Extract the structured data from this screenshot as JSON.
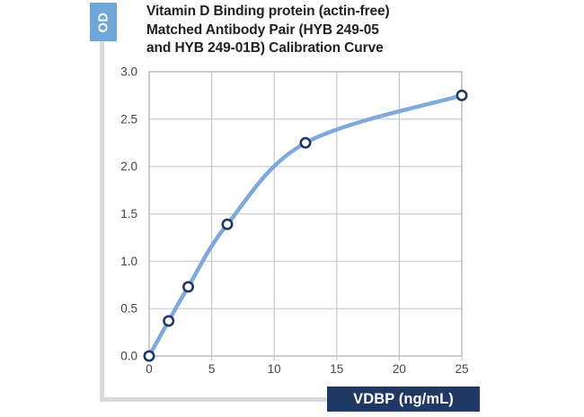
{
  "title": {
    "lines": [
      "Vitamin D Binding protein (actin-free)",
      "Matched Antibody Pair (HYB 249-05",
      "and HYB 249-01B) Calibration Curve"
    ]
  },
  "y_axis_label": "OD",
  "x_axis_label": "VDBP (ng/mL)",
  "colors": {
    "y_label_box": "#6fa7d9",
    "x_label_box": "#1f3864",
    "curve": "#7ea9da",
    "marker_stroke": "#1f3864",
    "marker_fill": "#ffffff",
    "gridline": "#c9c9c9",
    "plot_border": "#bfbfbf",
    "tick_text": "#454545",
    "axis_decor": "#d9d9d9",
    "title_text": "#221f20"
  },
  "chart_data": {
    "type": "line",
    "title": "Vitamin D Binding protein (actin-free) Matched Antibody Pair (HYB 249-05 and HYB 249-01B) Calibration Curve",
    "xlabel": "VDBP (ng/mL)",
    "ylabel": "OD",
    "x": [
      0,
      1.56,
      3.125,
      6.25,
      12.5,
      25
    ],
    "y": [
      0,
      0.37,
      0.73,
      1.39,
      2.25,
      2.75
    ],
    "xlim": [
      0,
      25
    ],
    "ylim": [
      0,
      3.0
    ],
    "x_tick_values": [
      0,
      5,
      10,
      15,
      20,
      25
    ],
    "x_ticks": [
      "0",
      "5",
      "10",
      "15",
      "20",
      "25"
    ],
    "y_tick_values": [
      0,
      0.5,
      1.0,
      1.5,
      2.0,
      2.5,
      3.0
    ],
    "y_ticks": [
      "0.0",
      "0.5",
      "1.0",
      "1.5",
      "2.0",
      "2.5",
      "3.0"
    ],
    "grid": true,
    "smooth": true,
    "marker": "open-circle",
    "legend": false
  }
}
